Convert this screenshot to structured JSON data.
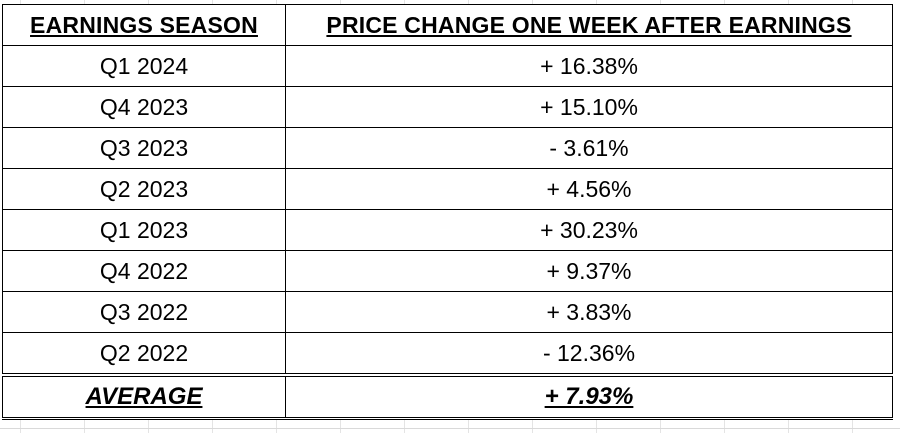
{
  "table": {
    "headers": {
      "season": "EARNINGS SEASON",
      "change": "PRICE CHANGE ONE WEEK AFTER EARNINGS"
    },
    "rows": [
      {
        "season": "Q1 2024",
        "change": "+ 16.38%"
      },
      {
        "season": "Q4 2023",
        "change": "+ 15.10%"
      },
      {
        "season": "Q3 2023",
        "change": "- 3.61%"
      },
      {
        "season": "Q2 2023",
        "change": "+ 4.56%"
      },
      {
        "season": "Q1 2023",
        "change": "+ 30.23%"
      },
      {
        "season": "Q4 2022",
        "change": "+ 9.37%"
      },
      {
        "season": "Q3 2022",
        "change": "+ 3.83%"
      },
      {
        "season": "Q2 2022",
        "change": "- 12.36%"
      }
    ],
    "summary": {
      "label": "AVERAGE",
      "value": "+ 7.93%"
    }
  }
}
